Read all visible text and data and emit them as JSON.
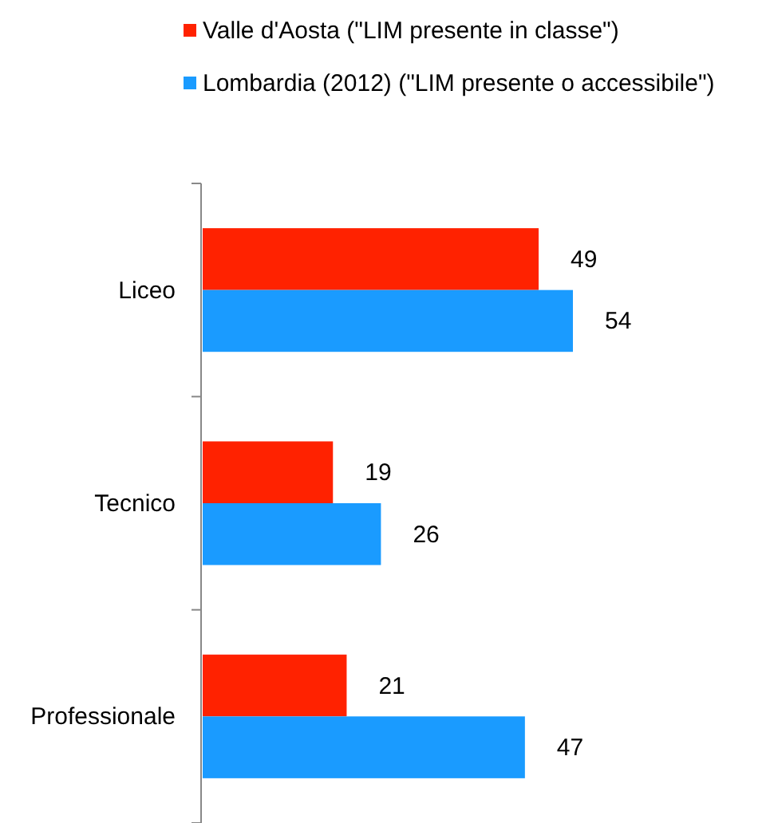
{
  "chart_data": {
    "type": "bar",
    "orientation": "horizontal",
    "relative": false,
    "categories": [
      "Liceo",
      "Tecnico",
      "Professionale"
    ],
    "series": [
      {
        "name": "Valle d'Aosta (\"LIM presente in classe\")",
        "color": "#ff2200",
        "values": [
          49,
          19,
          21
        ]
      },
      {
        "name": "Lombardia (2012) (\"LIM presente o accessibile\")",
        "color": "#1a9bff",
        "values": [
          54,
          26,
          47
        ]
      }
    ],
    "data_labels": true,
    "legend": "top"
  }
}
